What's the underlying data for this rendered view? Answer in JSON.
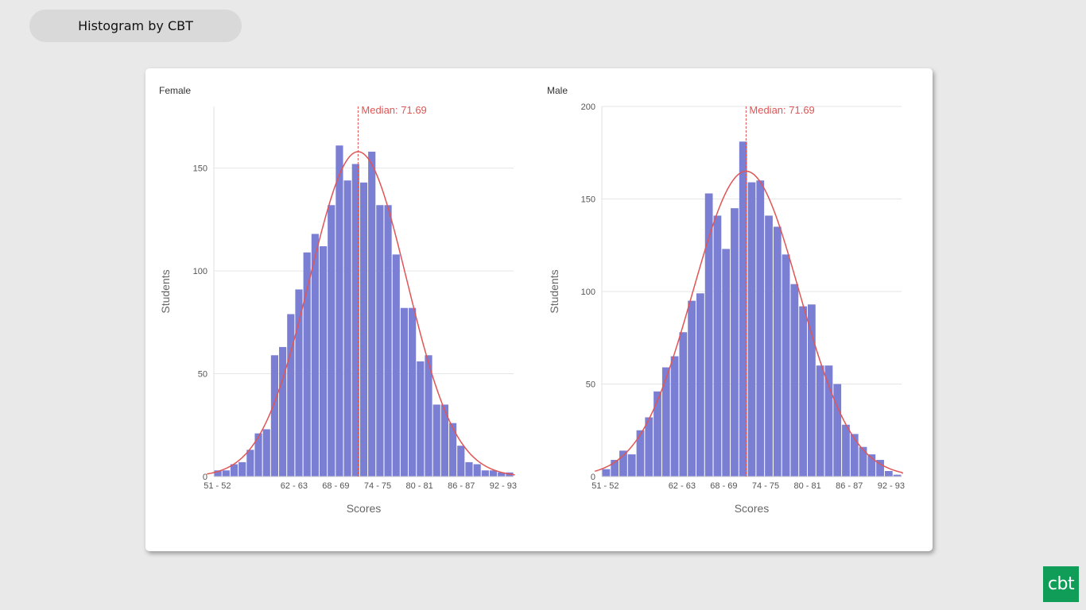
{
  "header": {
    "title": "Histogram by CBT"
  },
  "logo": {
    "text": "cbt"
  },
  "colors": {
    "bar": "#7b7fd4",
    "curve": "#e05555",
    "median": "#e05555",
    "grid": "#e6e6e6"
  },
  "chart_data": [
    {
      "type": "bar",
      "title": "Female",
      "xlabel": "Scores",
      "ylabel": "Students",
      "grid": true,
      "ylim": [
        0,
        180
      ],
      "yticks": [
        0,
        50,
        100,
        150
      ],
      "xticks": [
        "51 - 52",
        "62 - 63",
        "68 - 69",
        "74 - 75",
        "80 - 81",
        "86 - 87",
        "92 - 93"
      ],
      "bin_start": 51,
      "bin_end": 94,
      "values": [
        3,
        3,
        6,
        7,
        13,
        21,
        23,
        59,
        63,
        79,
        91,
        109,
        118,
        112,
        132,
        161,
        144,
        152,
        143,
        158,
        132,
        132,
        108,
        82,
        82,
        56,
        59,
        35,
        35,
        26,
        15,
        7,
        6,
        3,
        3,
        2,
        2
      ],
      "median": 71.69,
      "median_label": "Median: 71.69",
      "curve_peak": 158
    },
    {
      "type": "bar",
      "title": "Male",
      "xlabel": "Scores",
      "ylabel": "Students",
      "grid": true,
      "ylim": [
        0,
        200
      ],
      "yticks": [
        0,
        50,
        100,
        150,
        200
      ],
      "xticks": [
        "51 - 52",
        "62 - 63",
        "68 - 69",
        "74 - 75",
        "80 - 81",
        "86 - 87",
        "92 - 93"
      ],
      "bin_start": 51,
      "bin_end": 94,
      "values": [
        4,
        9,
        14,
        12,
        25,
        32,
        46,
        59,
        65,
        78,
        95,
        99,
        153,
        141,
        123,
        145,
        181,
        159,
        160,
        141,
        135,
        120,
        104,
        92,
        93,
        60,
        60,
        50,
        28,
        23,
        16,
        12,
        9,
        3,
        1
      ],
      "median": 71.69,
      "median_label": "Median: 71.69",
      "curve_peak": 165
    }
  ]
}
